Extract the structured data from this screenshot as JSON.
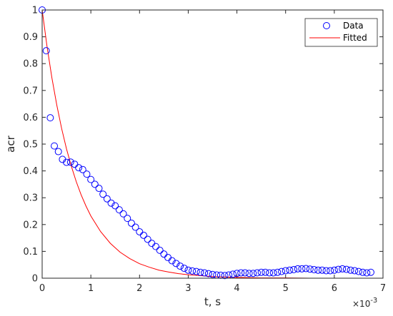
{
  "chart_data": {
    "type": "scatter",
    "xlabel": "t, s",
    "ylabel": "acr",
    "x_multiplier_label": "×10",
    "x_multiplier_exp": "-3",
    "xlim": [
      0,
      7
    ],
    "ylim": [
      0,
      1
    ],
    "x_ticks": [
      "0",
      "1",
      "2",
      "3",
      "4",
      "5",
      "6",
      "7"
    ],
    "y_ticks": [
      "0",
      "0.1",
      "0.2",
      "0.3",
      "0.4",
      "0.5",
      "0.6",
      "0.7",
      "0.8",
      "0.9",
      "1"
    ],
    "legend_position": "top-right",
    "grid": false,
    "series": [
      {
        "name": "Data",
        "kind": "markers",
        "marker": "circle",
        "color": "#0000ff",
        "x": [
          0.0,
          0.0833,
          0.1667,
          0.25,
          0.3333,
          0.4167,
          0.5,
          0.5833,
          0.6667,
          0.75,
          0.8333,
          0.9167,
          1.0,
          1.0833,
          1.1667,
          1.25,
          1.3333,
          1.4167,
          1.5,
          1.5833,
          1.6667,
          1.75,
          1.8333,
          1.9167,
          2.0,
          2.0833,
          2.1667,
          2.25,
          2.3333,
          2.4167,
          2.5,
          2.5833,
          2.6667,
          2.75,
          2.8333,
          2.9167,
          3.0,
          3.0833,
          3.1667,
          3.25,
          3.3333,
          3.4167,
          3.5,
          3.5833,
          3.6667,
          3.75,
          3.8333,
          3.9167,
          4.0,
          4.0833,
          4.1667,
          4.25,
          4.3333,
          4.4167,
          4.5,
          4.5833,
          4.6667,
          4.75,
          4.8333,
          4.9167,
          5.0,
          5.0833,
          5.1667,
          5.25,
          5.3333,
          5.4167,
          5.5,
          5.5833,
          5.6667,
          5.75,
          5.8333,
          5.9167,
          6.0,
          6.0833,
          6.1667,
          6.25,
          6.3333,
          6.4167,
          6.5,
          6.5833,
          6.6667,
          6.75
        ],
        "y": [
          1.0,
          0.848,
          0.598,
          0.493,
          0.472,
          0.443,
          0.432,
          0.433,
          0.425,
          0.412,
          0.405,
          0.388,
          0.368,
          0.35,
          0.335,
          0.313,
          0.296,
          0.28,
          0.27,
          0.255,
          0.24,
          0.223,
          0.205,
          0.19,
          0.173,
          0.16,
          0.145,
          0.13,
          0.118,
          0.104,
          0.09,
          0.077,
          0.065,
          0.055,
          0.045,
          0.037,
          0.03,
          0.027,
          0.025,
          0.022,
          0.02,
          0.017,
          0.014,
          0.012,
          0.011,
          0.01,
          0.012,
          0.015,
          0.018,
          0.02,
          0.02,
          0.018,
          0.018,
          0.02,
          0.022,
          0.022,
          0.02,
          0.02,
          0.022,
          0.025,
          0.028,
          0.03,
          0.032,
          0.035,
          0.035,
          0.036,
          0.034,
          0.032,
          0.03,
          0.03,
          0.028,
          0.028,
          0.03,
          0.033,
          0.035,
          0.033,
          0.03,
          0.028,
          0.025,
          0.022,
          0.02,
          0.022
        ]
      },
      {
        "name": "Fitted",
        "kind": "line",
        "color": "#ff0000",
        "x": [
          0.0,
          0.1,
          0.2,
          0.3,
          0.4,
          0.5,
          0.6,
          0.7,
          0.8,
          0.9,
          1.0,
          1.2,
          1.4,
          1.6,
          1.8,
          2.0,
          2.2,
          2.4,
          2.6,
          2.8,
          3.0,
          3.5,
          4.0,
          4.5,
          5.0,
          5.5,
          6.0,
          6.5,
          6.8
        ],
        "y": [
          1.0,
          0.864,
          0.747,
          0.646,
          0.558,
          0.482,
          0.417,
          0.36,
          0.311,
          0.269,
          0.232,
          0.174,
          0.13,
          0.097,
          0.073,
          0.054,
          0.041,
          0.03,
          0.023,
          0.017,
          0.013,
          0.006,
          0.003,
          0.001,
          0.001,
          0.0,
          0.0,
          0.0,
          0.0
        ]
      }
    ]
  }
}
